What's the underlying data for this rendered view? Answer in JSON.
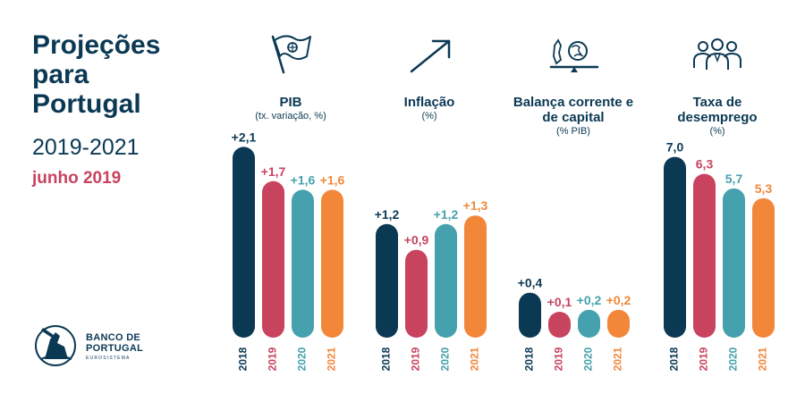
{
  "header": {
    "title_lines": [
      "Projeções",
      "para",
      "Portugal"
    ],
    "years": "2019-2021",
    "date": "junho 2019"
  },
  "logo": {
    "line1": "BANCO DE",
    "line2": "PORTUGAL",
    "line3": "EUROSISTEMA"
  },
  "icons": [
    "flag-icon",
    "trend-arrow-icon",
    "balance-scale-icon",
    "people-group-icon"
  ],
  "colors": {
    "2018": "#0b3954",
    "2019": "#c8435e",
    "2020": "#45a1ad",
    "2021": "#f2873a",
    "title": "#0b3954"
  },
  "chart_data": [
    {
      "type": "bar",
      "title": "PIB",
      "subtitle": "(tx. variação, %)",
      "categories": [
        "2018",
        "2019",
        "2020",
        "2021"
      ],
      "values": [
        2.1,
        1.7,
        1.6,
        1.6
      ],
      "labels": [
        "+2,1",
        "+1,7",
        "+1,6",
        "+1,6"
      ]
    },
    {
      "type": "bar",
      "title": "Inflação",
      "subtitle": "(%)",
      "categories": [
        "2018",
        "2019",
        "2020",
        "2021"
      ],
      "values": [
        1.2,
        0.9,
        1.2,
        1.3
      ],
      "labels": [
        "+1,2",
        "+0,9",
        "+1,2",
        "+1,3"
      ]
    },
    {
      "type": "bar",
      "title": "Balança corrente e de capital",
      "subtitle": "(% PIB)",
      "categories": [
        "2018",
        "2019",
        "2020",
        "2021"
      ],
      "values": [
        0.4,
        0.1,
        0.2,
        0.2
      ],
      "labels": [
        "+0,4",
        "+0,1",
        "+0,2",
        "+0,2"
      ]
    },
    {
      "type": "bar",
      "title": "Taxa de desemprego",
      "subtitle": "(%)",
      "categories": [
        "2018",
        "2019",
        "2020",
        "2021"
      ],
      "values": [
        7.0,
        6.3,
        5.7,
        5.3
      ],
      "labels": [
        "7,0",
        "6,3",
        "5,7",
        "5,3"
      ]
    }
  ]
}
